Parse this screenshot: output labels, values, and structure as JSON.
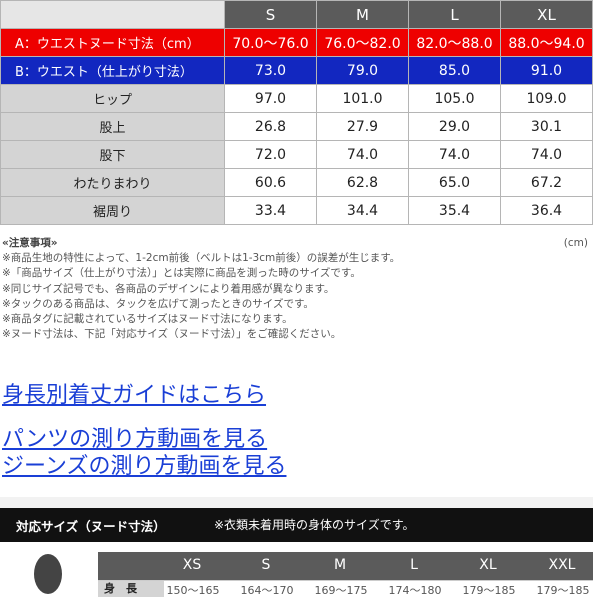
{
  "size_table": {
    "headers": [
      "",
      "S",
      "M",
      "L",
      "XL"
    ],
    "rows": [
      {
        "label": "A：ウエストヌード寸法（cm）",
        "values": [
          "70.0〜76.0",
          "76.0〜82.0",
          "82.0〜88.0",
          "88.0〜94.0"
        ]
      },
      {
        "label": "B：ウエスト（仕上がり寸法）",
        "values": [
          "73.0",
          "79.0",
          "85.0",
          "91.0"
        ]
      },
      {
        "label": "ヒップ",
        "values": [
          "97.0",
          "101.0",
          "105.0",
          "109.0"
        ]
      },
      {
        "label": "股上",
        "values": [
          "26.8",
          "27.9",
          "29.0",
          "30.1"
        ]
      },
      {
        "label": "股下",
        "values": [
          "72.0",
          "74.0",
          "74.0",
          "74.0"
        ]
      },
      {
        "label": "わたりまわり",
        "values": [
          "60.6",
          "62.8",
          "65.0",
          "67.2"
        ]
      },
      {
        "label": "裾周り",
        "values": [
          "33.4",
          "34.4",
          "35.4",
          "36.4"
        ]
      }
    ],
    "row_colors": {
      "red": "#ee0000",
      "blue": "#1227c0",
      "header": "#5b5b5b",
      "label_gray": "#d4d4d4"
    }
  },
  "notes": {
    "title": "«注意事項»",
    "unit": "(cm)",
    "lines": [
      "※商品生地の特性によって、1-2cm前後（ベルトは1-3cm前後）の誤差が生じます。",
      "※「商品サイズ（仕上がり寸法）」とは実際に商品を測った時のサイズです。",
      "※同じサイズ記号でも、各商品のデザインにより着用感が異なります。",
      "※タックのある商品は、タックを広げて測ったときのサイズです。",
      "※商品タグに記載されているサイズはヌード寸法になります。",
      "※ヌード寸法は、下記「対応サイズ（ヌード寸法）」をご確認ください。"
    ]
  },
  "links": {
    "height_guide": "身長別着丈ガイドはこちら",
    "pants_video": "パンツの測り方動画を見る",
    "jeans_video": "ジーンズの測り方動画を見る",
    "link_color": "#1a3fd6"
  },
  "nude_section": {
    "title": "対応サイズ（ヌード寸法）",
    "subtitle": "※衣類未着用時の身体のサイズです。",
    "headers": [
      "XS",
      "S",
      "M",
      "L",
      "XL",
      "XXL"
    ],
    "row_label": "身　長",
    "row_values": [
      "150〜165",
      "164〜170",
      "169〜175",
      "174〜180",
      "179〜185",
      "179〜185"
    ]
  }
}
